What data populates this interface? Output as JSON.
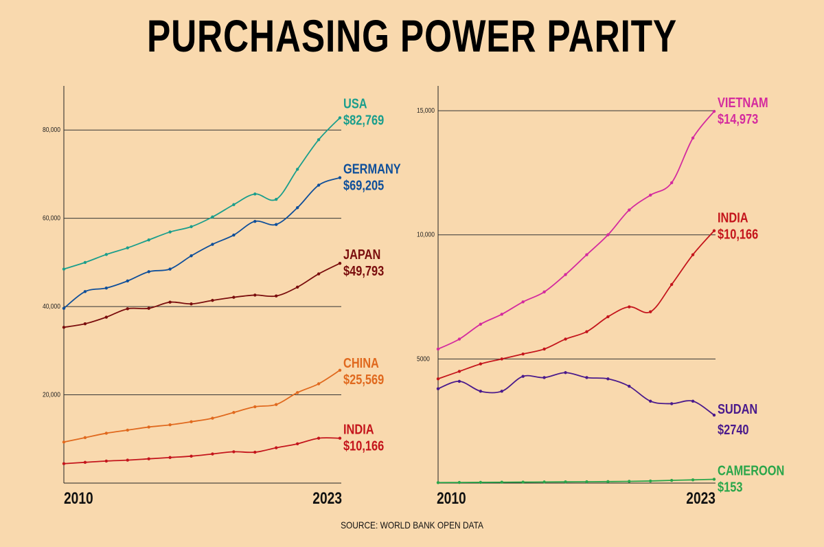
{
  "title": "PURCHASING POWER PARITY",
  "source": "SOURCE: WORLD BANK OPEN DATA",
  "chart_data": [
    {
      "type": "line",
      "x_start_label": "2010",
      "x_end_label": "2023",
      "x": [
        2010,
        2011,
        2012,
        2013,
        2014,
        2015,
        2016,
        2017,
        2018,
        2019,
        2020,
        2021,
        2022,
        2023
      ],
      "ylim": [
        0,
        90000
      ],
      "yticks": [
        20000,
        40000,
        60000,
        80000
      ],
      "ytick_labels": [
        "20,000",
        "40,000",
        "60,000",
        "80,000"
      ],
      "series": [
        {
          "name": "USA",
          "end_label": "$82,769",
          "color": "#1a9e8c",
          "values": [
            48500,
            50000,
            51800,
            53300,
            55100,
            56900,
            58100,
            60300,
            63100,
            65500,
            64300,
            71100,
            77800,
            82769
          ]
        },
        {
          "name": "GERMANY",
          "end_label": "$69,205",
          "color": "#0f4f9a",
          "values": [
            39600,
            43400,
            44200,
            45800,
            47900,
            48500,
            51500,
            54100,
            56200,
            59300,
            58600,
            62400,
            67500,
            69205
          ]
        },
        {
          "name": "JAPAN",
          "end_label": "$49,793",
          "color": "#7a0d0d",
          "values": [
            35300,
            36100,
            37600,
            39500,
            39600,
            41000,
            40600,
            41400,
            42100,
            42600,
            42400,
            44400,
            47400,
            49793
          ]
        },
        {
          "name": "CHINA",
          "end_label": "$25,569",
          "color": "#e0691e",
          "values": [
            9300,
            10300,
            11300,
            12000,
            12700,
            13200,
            13900,
            14700,
            16000,
            17300,
            17800,
            20500,
            22500,
            25569
          ]
        },
        {
          "name": "INDIA",
          "end_label": "$10,166",
          "color": "#c4151c",
          "values": [
            4400,
            4700,
            5000,
            5200,
            5500,
            5800,
            6100,
            6600,
            7100,
            7000,
            8000,
            8900,
            10166,
            10166
          ]
        }
      ]
    },
    {
      "type": "line",
      "x_start_label": "2010",
      "x_end_label": "2023",
      "x": [
        2010,
        2011,
        2012,
        2013,
        2014,
        2015,
        2016,
        2017,
        2018,
        2019,
        2020,
        2021,
        2022,
        2023
      ],
      "ylim": [
        0,
        16000
      ],
      "yticks": [
        5000,
        10000,
        15000
      ],
      "ytick_labels": [
        "5000",
        "10,000",
        "15,000"
      ],
      "series": [
        {
          "name": "VIETNAM",
          "end_label": "$14,973",
          "color": "#d42b9e",
          "values": [
            5400,
            5800,
            6400,
            6800,
            7300,
            7700,
            8400,
            9200,
            10000,
            11000,
            11600,
            12100,
            13900,
            14973
          ]
        },
        {
          "name": "INDIA",
          "end_label": "$10,166",
          "color": "#c4151c",
          "values": [
            4200,
            4500,
            4800,
            5000,
            5200,
            5400,
            5800,
            6100,
            6700,
            7100,
            6900,
            8000,
            9200,
            10166
          ]
        },
        {
          "name": "SUDAN",
          "end_label": "$2740",
          "color": "#4a1a8c",
          "values": [
            3800,
            4100,
            3700,
            3700,
            4300,
            4250,
            4450,
            4250,
            4200,
            3900,
            3300,
            3200,
            3300,
            2740
          ]
        },
        {
          "name": "CAMEROON",
          "end_label": "$153",
          "color": "#2aa64a",
          "values": [
            20,
            25,
            30,
            35,
            40,
            45,
            50,
            55,
            60,
            70,
            85,
            110,
            130,
            153
          ]
        }
      ]
    }
  ]
}
